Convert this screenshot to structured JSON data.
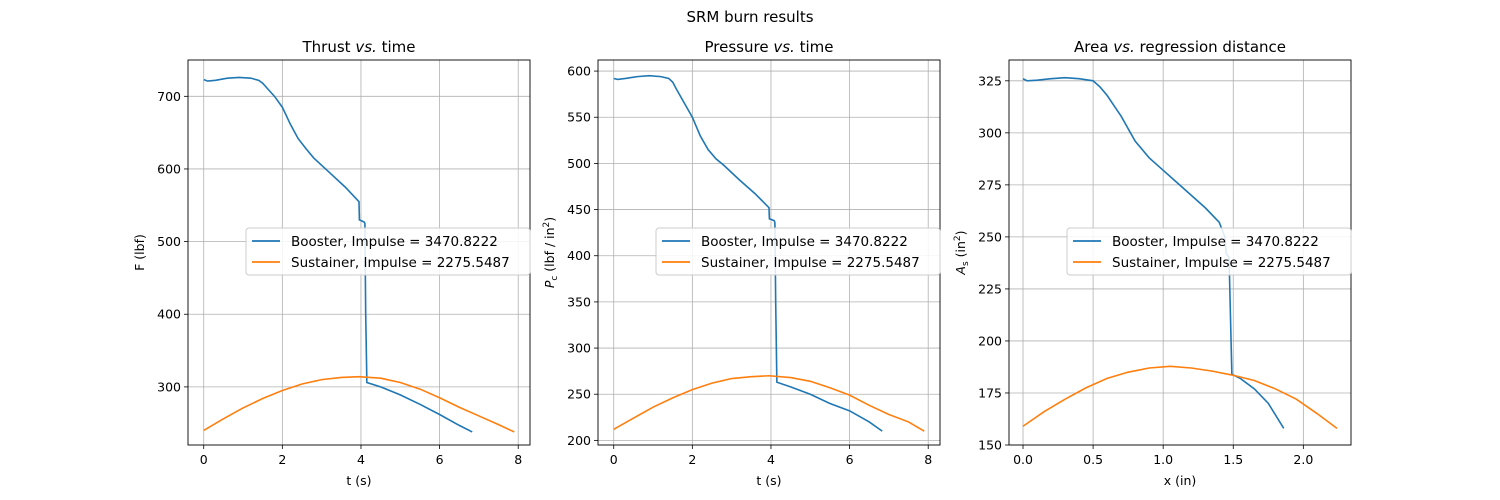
{
  "figure": {
    "suptitle": "SRM burn results"
  },
  "colors": {
    "booster": "#1f77b4",
    "sustainer": "#ff7f0e",
    "grid": "#b0b0b0",
    "legend_border": "#cccccc"
  },
  "chart_data": [
    {
      "type": "line",
      "title_parts": [
        "Thrust ",
        "vs.",
        " time"
      ],
      "xlabel": "t (s)",
      "ylabel": "F (lbf)",
      "xlim": [
        -0.4,
        8.3
      ],
      "ylim": [
        220,
        750
      ],
      "xticks": [
        0,
        2,
        4,
        6,
        8
      ],
      "yticks": [
        300,
        400,
        500,
        600,
        700
      ],
      "grid": true,
      "legend_location": "center-right",
      "series": [
        {
          "name": "Booster, Impulse = 3470.8222",
          "color": "#1f77b4",
          "points": [
            [
              0,
              723
            ],
            [
              0.1,
              721
            ],
            [
              0.3,
              722
            ],
            [
              0.6,
              725
            ],
            [
              0.9,
              726
            ],
            [
              1.2,
              725
            ],
            [
              1.4,
              722
            ],
            [
              1.5,
              718
            ],
            [
              1.6,
              712
            ],
            [
              1.8,
              700
            ],
            [
              2.0,
              685
            ],
            [
              2.2,
              662
            ],
            [
              2.4,
              642
            ],
            [
              2.6,
              628
            ],
            [
              2.8,
              615
            ],
            [
              3.2,
              595
            ],
            [
              3.6,
              575
            ],
            [
              3.95,
              555
            ],
            [
              3.96,
              530
            ],
            [
              4.08,
              527
            ],
            [
              4.1,
              525
            ],
            [
              4.12,
              402
            ],
            [
              4.15,
              306
            ],
            [
              4.5,
              300
            ],
            [
              5.0,
              289
            ],
            [
              5.5,
              276
            ],
            [
              6.0,
              262
            ],
            [
              6.5,
              247
            ],
            [
              6.83,
              238
            ]
          ]
        },
        {
          "name": "Sustainer, Impulse = 2275.5487",
          "color": "#ff7f0e",
          "points": [
            [
              0,
              240
            ],
            [
              0.5,
              256
            ],
            [
              1.0,
              271
            ],
            [
              1.5,
              284
            ],
            [
              2.0,
              295
            ],
            [
              2.5,
              304
            ],
            [
              3.0,
              310
            ],
            [
              3.5,
              313
            ],
            [
              3.95,
              314
            ],
            [
              4.5,
              312
            ],
            [
              5.0,
              306
            ],
            [
              5.5,
              297
            ],
            [
              6.0,
              285
            ],
            [
              6.5,
              272
            ],
            [
              7.0,
              260
            ],
            [
              7.5,
              248
            ],
            [
              7.9,
              238
            ]
          ]
        }
      ]
    },
    {
      "type": "line",
      "title_parts": [
        "Pressure ",
        "vs.",
        " time"
      ],
      "xlabel": "t (s)",
      "ylabel_main": "P",
      "ylabel_sub": "c",
      "ylabel_rest": " (lbf / in",
      "ylabel_sup": "2",
      "ylabel_end": ")",
      "xlim": [
        -0.4,
        8.3
      ],
      "ylim": [
        195,
        612
      ],
      "xticks": [
        0,
        2,
        4,
        6,
        8
      ],
      "yticks": [
        200,
        250,
        300,
        350,
        400,
        450,
        500,
        550,
        600
      ],
      "grid": true,
      "legend_location": "center-right",
      "series": [
        {
          "name": "Booster, Impulse = 3470.8222",
          "color": "#1f77b4",
          "points": [
            [
              0,
              592
            ],
            [
              0.1,
              591
            ],
            [
              0.3,
              592
            ],
            [
              0.6,
              594
            ],
            [
              0.9,
              595
            ],
            [
              1.2,
              594
            ],
            [
              1.4,
              592
            ],
            [
              1.5,
              588
            ],
            [
              1.6,
              580
            ],
            [
              1.8,
              565
            ],
            [
              2.0,
              550
            ],
            [
              2.2,
              530
            ],
            [
              2.4,
              515
            ],
            [
              2.6,
              505
            ],
            [
              2.8,
              498
            ],
            [
              3.2,
              482
            ],
            [
              3.6,
              467
            ],
            [
              3.95,
              452
            ],
            [
              3.96,
              440
            ],
            [
              4.08,
              438
            ],
            [
              4.1,
              436
            ],
            [
              4.12,
              350
            ],
            [
              4.15,
              263
            ],
            [
              4.5,
              258
            ],
            [
              5.0,
              250
            ],
            [
              5.5,
              240
            ],
            [
              6.0,
              232
            ],
            [
              6.5,
              220
            ],
            [
              6.83,
              210
            ]
          ]
        },
        {
          "name": "Sustainer, Impulse = 2275.5487",
          "color": "#ff7f0e",
          "points": [
            [
              0,
              212
            ],
            [
              0.5,
              224
            ],
            [
              1.0,
              236
            ],
            [
              1.5,
              246
            ],
            [
              2.0,
              255
            ],
            [
              2.5,
              262
            ],
            [
              3.0,
              267
            ],
            [
              3.5,
              269
            ],
            [
              3.95,
              270
            ],
            [
              4.5,
              268
            ],
            [
              5.0,
              264
            ],
            [
              5.5,
              257
            ],
            [
              6.0,
              249
            ],
            [
              6.5,
              238
            ],
            [
              7.0,
              228
            ],
            [
              7.5,
              220
            ],
            [
              7.9,
              210
            ]
          ]
        }
      ]
    },
    {
      "type": "line",
      "title_parts": [
        "Area ",
        "vs.",
        " regression distance"
      ],
      "xlabel": "x (in)",
      "ylabel_main": "A",
      "ylabel_sub": "s",
      "ylabel_rest": " (in",
      "ylabel_sup": "2",
      "ylabel_end": ")",
      "xlim": [
        -0.1,
        2.34
      ],
      "ylim": [
        150,
        335
      ],
      "xticks": [
        0.0,
        0.5,
        1.0,
        1.5,
        2.0
      ],
      "xticklabels": [
        "0.0",
        "0.5",
        "1.0",
        "1.5",
        "2.0"
      ],
      "yticks": [
        150,
        175,
        200,
        225,
        250,
        275,
        300,
        325
      ],
      "grid": true,
      "legend_location": "center-right",
      "series": [
        {
          "name": "Booster, Impulse = 3470.8222",
          "color": "#1f77b4",
          "points": [
            [
              0,
              326
            ],
            [
              0.03,
              325
            ],
            [
              0.1,
              325.3
            ],
            [
              0.2,
              326
            ],
            [
              0.3,
              326.5
            ],
            [
              0.4,
              326
            ],
            [
              0.5,
              325
            ],
            [
              0.55,
              322
            ],
            [
              0.6,
              318
            ],
            [
              0.65,
              313
            ],
            [
              0.7,
              308
            ],
            [
              0.75,
              302
            ],
            [
              0.8,
              296
            ],
            [
              0.9,
              288
            ],
            [
              1.0,
              282
            ],
            [
              1.1,
              276
            ],
            [
              1.2,
              270
            ],
            [
              1.3,
              264
            ],
            [
              1.4,
              257
            ],
            [
              1.44,
              250
            ],
            [
              1.45,
              242
            ],
            [
              1.46,
              241
            ],
            [
              1.47,
              240
            ],
            [
              1.48,
              212
            ],
            [
              1.49,
              184
            ],
            [
              1.55,
              182
            ],
            [
              1.65,
              177
            ],
            [
              1.75,
              170
            ],
            [
              1.86,
              158
            ]
          ]
        },
        {
          "name": "Sustainer, Impulse = 2275.5487",
          "color": "#ff7f0e",
          "points": [
            [
              0,
              159
            ],
            [
              0.15,
              166
            ],
            [
              0.3,
              172
            ],
            [
              0.45,
              177.5
            ],
            [
              0.6,
              182
            ],
            [
              0.75,
              185
            ],
            [
              0.9,
              187
            ],
            [
              1.05,
              187.8
            ],
            [
              1.2,
              187
            ],
            [
              1.35,
              185.5
            ],
            [
              1.5,
              183.5
            ],
            [
              1.65,
              181
            ],
            [
              1.8,
              177
            ],
            [
              1.95,
              172
            ],
            [
              2.1,
              165
            ],
            [
              2.24,
              158
            ]
          ]
        }
      ]
    }
  ]
}
